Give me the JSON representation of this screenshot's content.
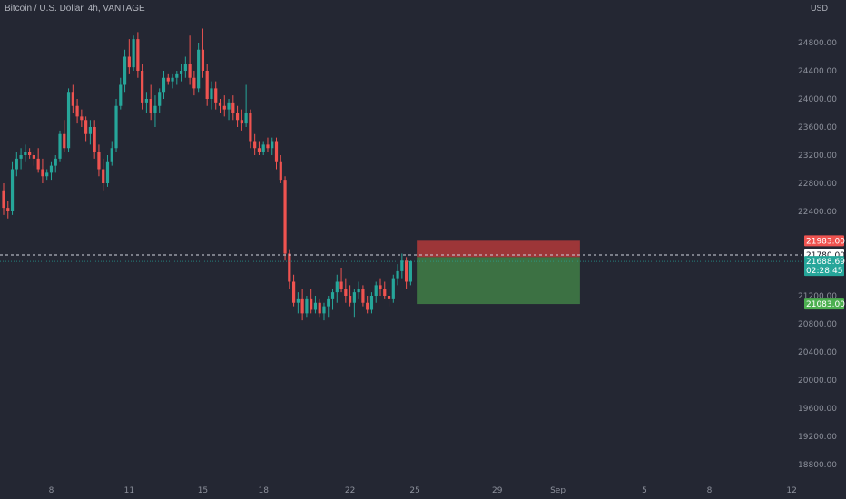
{
  "header": {
    "title": "Bitcoin / U.S. Dollar, 4h, VANTAGE",
    "currency": "USD"
  },
  "colors": {
    "background": "#242733",
    "up": "#26a69a",
    "down": "#ef5350",
    "stop_zone": "#b33a3a",
    "target_zone": "#3f7a45"
  },
  "chart_data": {
    "type": "candlestick",
    "title": "Bitcoin / U.S. Dollar, 4h, VANTAGE",
    "ylim": [
      18600,
      25200
    ],
    "y_ticks": [
      {
        "v": 24800,
        "label": "24800.00"
      },
      {
        "v": 24400,
        "label": "24400.00"
      },
      {
        "v": 24000,
        "label": "24000.00"
      },
      {
        "v": 23600,
        "label": "23600.00"
      },
      {
        "v": 23200,
        "label": "23200.00"
      },
      {
        "v": 22800,
        "label": "22800.00"
      },
      {
        "v": 22400,
        "label": "22400.00"
      },
      {
        "v": 21200,
        "label": "21200.00"
      },
      {
        "v": 20800,
        "label": "20800.00"
      },
      {
        "v": 20400,
        "label": "20400.00"
      },
      {
        "v": 20000,
        "label": "20000.00"
      },
      {
        "v": 19600,
        "label": "19600.00"
      },
      {
        "v": 19200,
        "label": "19200.00"
      },
      {
        "v": 18800,
        "label": "18800.00"
      }
    ],
    "x_ticks": [
      {
        "label": "8",
        "i": 11
      },
      {
        "label": "11",
        "i": 29
      },
      {
        "label": "15",
        "i": 46
      },
      {
        "label": "18",
        "i": 60
      },
      {
        "label": "22",
        "i": 80
      },
      {
        "label": "25",
        "i": 95
      },
      {
        "label": "29",
        "i": 114
      },
      {
        "label": "Sep",
        "i": 128
      },
      {
        "label": "5",
        "i": 148
      },
      {
        "label": "8",
        "i": 163
      },
      {
        "label": "12",
        "i": 182
      }
    ],
    "candles": [
      [
        22700,
        22800,
        22350,
        22450
      ],
      [
        22450,
        22550,
        22300,
        22400
      ],
      [
        22400,
        23100,
        22350,
        23000
      ],
      [
        23000,
        23250,
        22900,
        23150
      ],
      [
        23150,
        23300,
        23000,
        23200
      ],
      [
        23200,
        23350,
        23100,
        23250
      ],
      [
        23250,
        23300,
        23150,
        23200
      ],
      [
        23200,
        23250,
        23050,
        23150
      ],
      [
        23150,
        23300,
        22950,
        23000
      ],
      [
        23000,
        23150,
        22800,
        22900
      ],
      [
        22900,
        23000,
        22850,
        22950
      ],
      [
        22950,
        23100,
        22850,
        23050
      ],
      [
        23050,
        23200,
        22950,
        23150
      ],
      [
        23150,
        23550,
        23100,
        23500
      ],
      [
        23500,
        23700,
        23250,
        23300
      ],
      [
        23300,
        24150,
        23250,
        24100
      ],
      [
        24100,
        24200,
        23800,
        23900
      ],
      [
        23900,
        24000,
        23650,
        23750
      ],
      [
        23750,
        23850,
        23600,
        23700
      ],
      [
        23700,
        23750,
        23400,
        23500
      ],
      [
        23500,
        23700,
        23350,
        23600
      ],
      [
        23600,
        23700,
        23150,
        23250
      ],
      [
        23250,
        23350,
        22900,
        23000
      ],
      [
        23000,
        23150,
        22700,
        22800
      ],
      [
        22800,
        23200,
        22750,
        23100
      ],
      [
        23100,
        23400,
        23050,
        23300
      ],
      [
        23300,
        24000,
        23250,
        23900
      ],
      [
        23900,
        24300,
        23850,
        24200
      ],
      [
        24200,
        24700,
        24100,
        24600
      ],
      [
        24600,
        24850,
        24350,
        24450
      ],
      [
        24450,
        24900,
        24400,
        24850
      ],
      [
        24850,
        24950,
        24300,
        24400
      ],
      [
        24400,
        24500,
        23850,
        23950
      ],
      [
        23950,
        24100,
        23800,
        24000
      ],
      [
        24000,
        24200,
        23700,
        23800
      ],
      [
        23800,
        24050,
        23600,
        23900
      ],
      [
        23900,
        24150,
        23800,
        24100
      ],
      [
        24100,
        24400,
        24000,
        24300
      ],
      [
        24300,
        24350,
        24200,
        24250
      ],
      [
        24250,
        24350,
        24150,
        24300
      ],
      [
        24300,
        24400,
        24200,
        24350
      ],
      [
        24350,
        24500,
        24250,
        24400
      ],
      [
        24400,
        24600,
        24300,
        24500
      ],
      [
        24500,
        24900,
        24200,
        24300
      ],
      [
        24300,
        24400,
        24050,
        24150
      ],
      [
        24150,
        24800,
        24100,
        24700
      ],
      [
        24700,
        25000,
        24300,
        24400
      ],
      [
        24400,
        24500,
        23900,
        24000
      ],
      [
        24000,
        24250,
        23850,
        24150
      ],
      [
        24150,
        24250,
        23850,
        23950
      ],
      [
        23950,
        24000,
        23800,
        23900
      ],
      [
        23900,
        24050,
        23750,
        23850
      ],
      [
        23850,
        24000,
        23700,
        23950
      ],
      [
        23950,
        24050,
        23700,
        23800
      ],
      [
        23800,
        23900,
        23600,
        23700
      ],
      [
        23700,
        23850,
        23550,
        23650
      ],
      [
        23650,
        24200,
        23600,
        23800
      ],
      [
        23800,
        23850,
        23300,
        23400
      ],
      [
        23400,
        23500,
        23200,
        23300
      ],
      [
        23300,
        23400,
        23200,
        23250
      ],
      [
        23250,
        23400,
        23200,
        23350
      ],
      [
        23350,
        23450,
        23250,
        23300
      ],
      [
        23300,
        23450,
        23200,
        23400
      ],
      [
        23400,
        23450,
        23000,
        23100
      ],
      [
        23100,
        23200,
        22800,
        22850
      ],
      [
        22850,
        22900,
        21700,
        21800
      ],
      [
        21800,
        21850,
        21300,
        21400
      ],
      [
        21400,
        21500,
        21050,
        21100
      ],
      [
        21100,
        21250,
        20950,
        21150
      ],
      [
        21150,
        21300,
        20850,
        20950
      ],
      [
        20950,
        21200,
        20900,
        21150
      ],
      [
        21150,
        21300,
        20950,
        21000
      ],
      [
        21000,
        21200,
        20950,
        21100
      ],
      [
        21100,
        21150,
        20900,
        20950
      ],
      [
        20950,
        21100,
        20850,
        21050
      ],
      [
        21050,
        21200,
        20900,
        21150
      ],
      [
        21150,
        21300,
        21000,
        21250
      ],
      [
        21250,
        21500,
        21100,
        21400
      ],
      [
        21400,
        21600,
        21250,
        21300
      ],
      [
        21300,
        21450,
        21100,
        21200
      ],
      [
        21200,
        21350,
        21050,
        21100
      ],
      [
        21100,
        21300,
        20900,
        21250
      ],
      [
        21250,
        21400,
        21150,
        21300
      ],
      [
        21300,
        21350,
        21050,
        21100
      ],
      [
        21100,
        21200,
        20950,
        21000
      ],
      [
        21000,
        21250,
        20950,
        21200
      ],
      [
        21200,
        21400,
        21100,
        21350
      ],
      [
        21350,
        21450,
        21200,
        21300
      ],
      [
        21300,
        21400,
        21150,
        21200
      ],
      [
        21200,
        21300,
        21050,
        21150
      ],
      [
        21150,
        21500,
        21100,
        21450
      ],
      [
        21450,
        21650,
        21350,
        21550
      ],
      [
        21550,
        21800,
        21450,
        21700
      ],
      [
        21700,
        21750,
        21300,
        21400
      ],
      [
        21400,
        21700,
        21350,
        21690
      ]
    ],
    "current_price": 21780.0,
    "last_close": 21688.69,
    "countdown": "02:28:45",
    "position": {
      "type": "short",
      "entry": 21750,
      "stop": 21983.0,
      "target": 21083.0,
      "stop_label": "21983.00",
      "target_label": "21083.00",
      "current_label": "21780.00",
      "last_label": "21688.69",
      "start_i": 95,
      "end_i": 131
    }
  }
}
